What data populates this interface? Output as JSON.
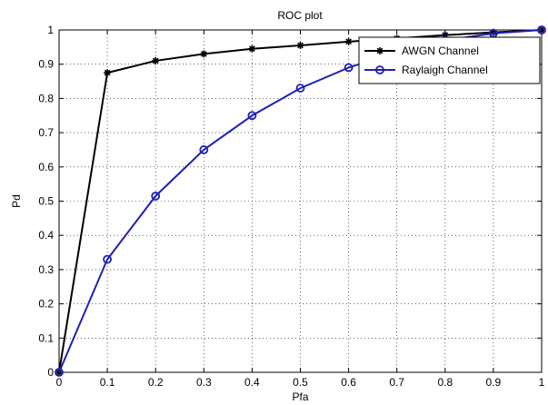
{
  "chart_data": {
    "type": "line",
    "title": "ROC plot",
    "xlabel": "Pfa",
    "ylabel": "Pd",
    "xlim": [
      0,
      1
    ],
    "ylim": [
      0,
      1
    ],
    "xticks": [
      "0",
      "0.1",
      "0.2",
      "0.3",
      "0.4",
      "0.5",
      "0.6",
      "0.7",
      "0.8",
      "0.9",
      "1"
    ],
    "yticks": [
      "0",
      "0.1",
      "0.2",
      "0.3",
      "0.4",
      "0.5",
      "0.6",
      "0.7",
      "0.8",
      "0.9",
      "1"
    ],
    "grid": true,
    "legend_position": "top-right",
    "x": [
      0,
      0.1,
      0.2,
      0.3,
      0.4,
      0.5,
      0.6,
      0.7,
      0.8,
      0.9,
      1
    ],
    "series": [
      {
        "name": "AWGN Channel",
        "color": "#000000",
        "marker": "star",
        "values": [
          0,
          0.875,
          0.91,
          0.93,
          0.945,
          0.955,
          0.966,
          0.975,
          0.985,
          0.993,
          1
        ]
      },
      {
        "name": "Raylaigh Channel",
        "color": "#1f1fb4",
        "marker": "circle",
        "values": [
          0,
          0.33,
          0.515,
          0.65,
          0.75,
          0.83,
          0.89,
          0.935,
          0.97,
          0.99,
          1
        ]
      }
    ]
  }
}
